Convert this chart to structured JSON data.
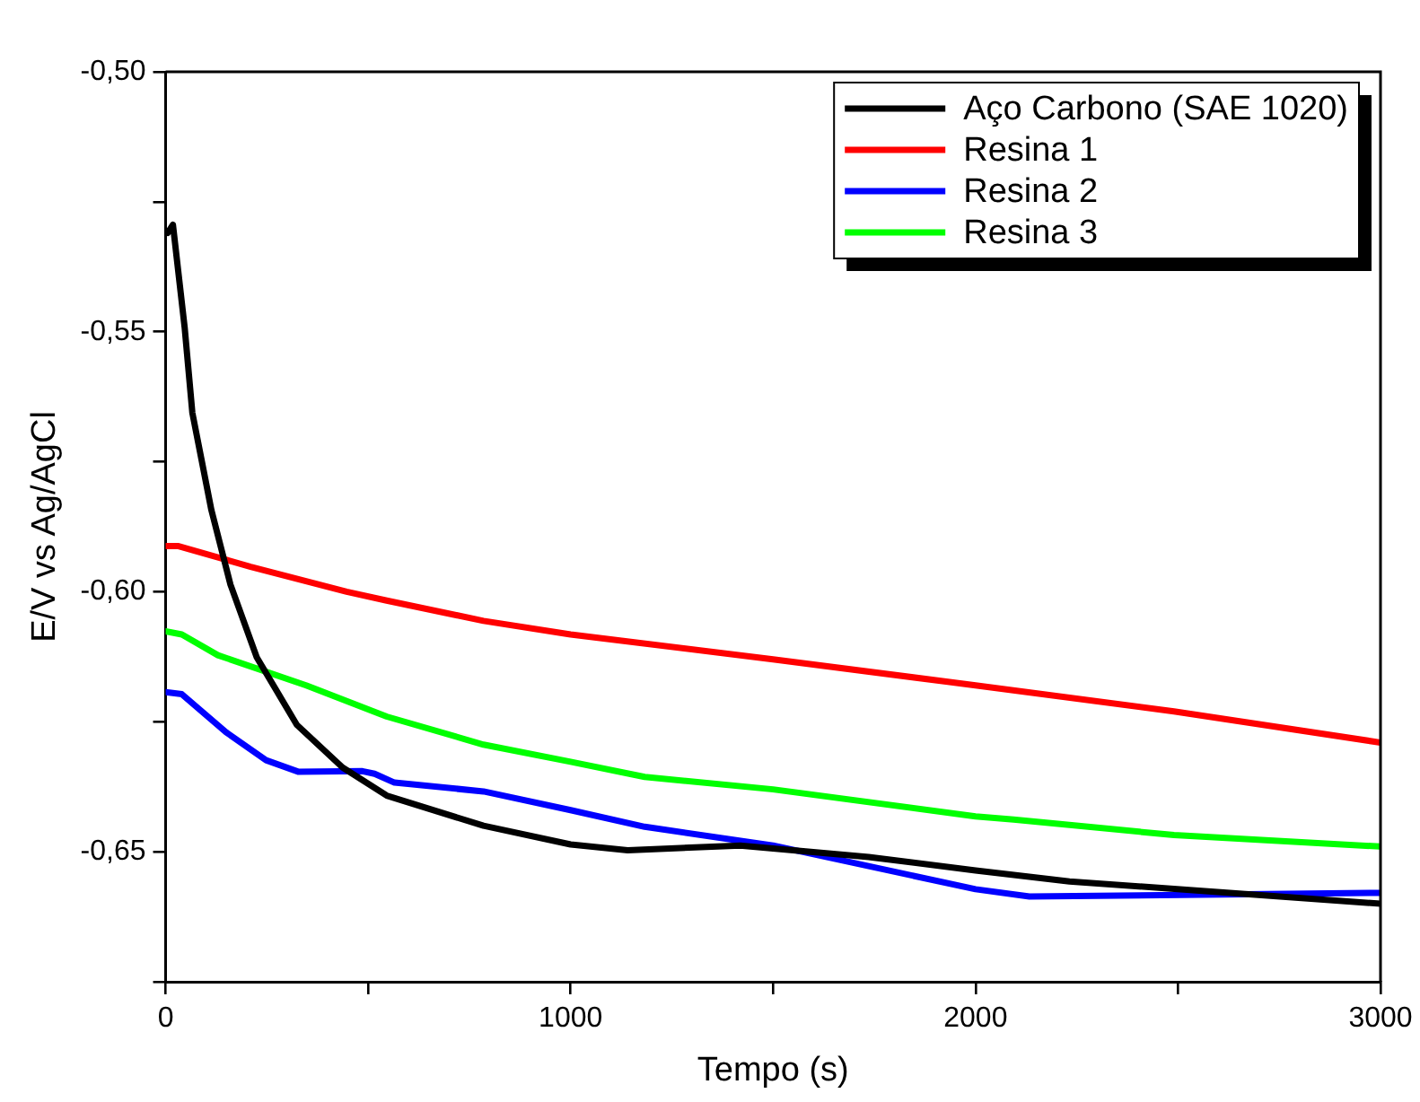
{
  "chart_data": {
    "type": "line",
    "xlabel": "Tempo (s)",
    "ylabel": "E/V vs Ag/AgCl",
    "xlim": [
      0,
      3000
    ],
    "ylim": [
      -0.675,
      -0.5
    ],
    "xticks": [
      0,
      {
        "value": 500,
        "label": null
      },
      1000,
      {
        "value": 1500,
        "label": null
      },
      2000,
      {
        "value": 2500,
        "label": null
      },
      3000
    ],
    "yticks": [
      {
        "value": -0.675,
        "label": null
      },
      {
        "value": -0.65,
        "label": "-0,65"
      },
      {
        "value": -0.625,
        "label": null
      },
      {
        "value": -0.6,
        "label": "-0,60"
      },
      {
        "value": -0.575,
        "label": null
      },
      {
        "value": -0.55,
        "label": "-0,55"
      },
      {
        "value": -0.525,
        "label": null
      },
      {
        "value": -0.5,
        "label": "-0,50"
      }
    ],
    "grid": false,
    "legend": "top right",
    "marker": "none",
    "line_style": "solid",
    "series": [
      {
        "name": "Aço Carbono (SAE 1020)",
        "color": "#000000",
        "x": [
          5,
          18,
          47,
          66,
          113,
          160,
          225,
          324,
          437,
          546,
          785,
          1000,
          1141,
          1419,
          1736,
          2000,
          2232,
          3000
        ],
        "values": [
          -0.531,
          -0.5294,
          -0.5492,
          -0.5656,
          -0.5843,
          -0.5986,
          -0.6126,
          -0.6256,
          -0.6338,
          -0.6392,
          -0.645,
          -0.6486,
          -0.6497,
          -0.6488,
          -0.651,
          -0.6536,
          -0.6557,
          -0.66
        ]
      },
      {
        "name": "Resina 1",
        "color": "#ff0000",
        "x": [
          0,
          30,
          210,
          447,
          546,
          785,
          1000,
          1500,
          2000,
          2490,
          3000
        ],
        "values": [
          -0.5912,
          -0.5912,
          -0.5952,
          -0.6,
          -0.6017,
          -0.6056,
          -0.6082,
          -0.613,
          -0.618,
          -0.623,
          -0.629
        ]
      },
      {
        "name": "Resina 2",
        "color": "#0000ff",
        "x": [
          0,
          40,
          149,
          248,
          327,
          486,
          516,
          565,
          785,
          1000,
          1183,
          1500,
          2000,
          2133,
          3000
        ],
        "values": [
          -0.6193,
          -0.6197,
          -0.627,
          -0.6324,
          -0.6346,
          -0.6345,
          -0.635,
          -0.6367,
          -0.6384,
          -0.642,
          -0.6452,
          -0.6488,
          -0.6572,
          -0.6586,
          -0.6579
        ]
      },
      {
        "name": "Resina 3",
        "color": "#00ff00",
        "x": [
          0,
          40,
          129,
          347,
          546,
          785,
          1000,
          1183,
          1500,
          2000,
          2094,
          2490,
          3000
        ],
        "values": [
          -0.6076,
          -0.6082,
          -0.6122,
          -0.618,
          -0.624,
          -0.6294,
          -0.6327,
          -0.6356,
          -0.638,
          -0.6432,
          -0.6438,
          -0.6468,
          -0.649
        ]
      }
    ]
  }
}
